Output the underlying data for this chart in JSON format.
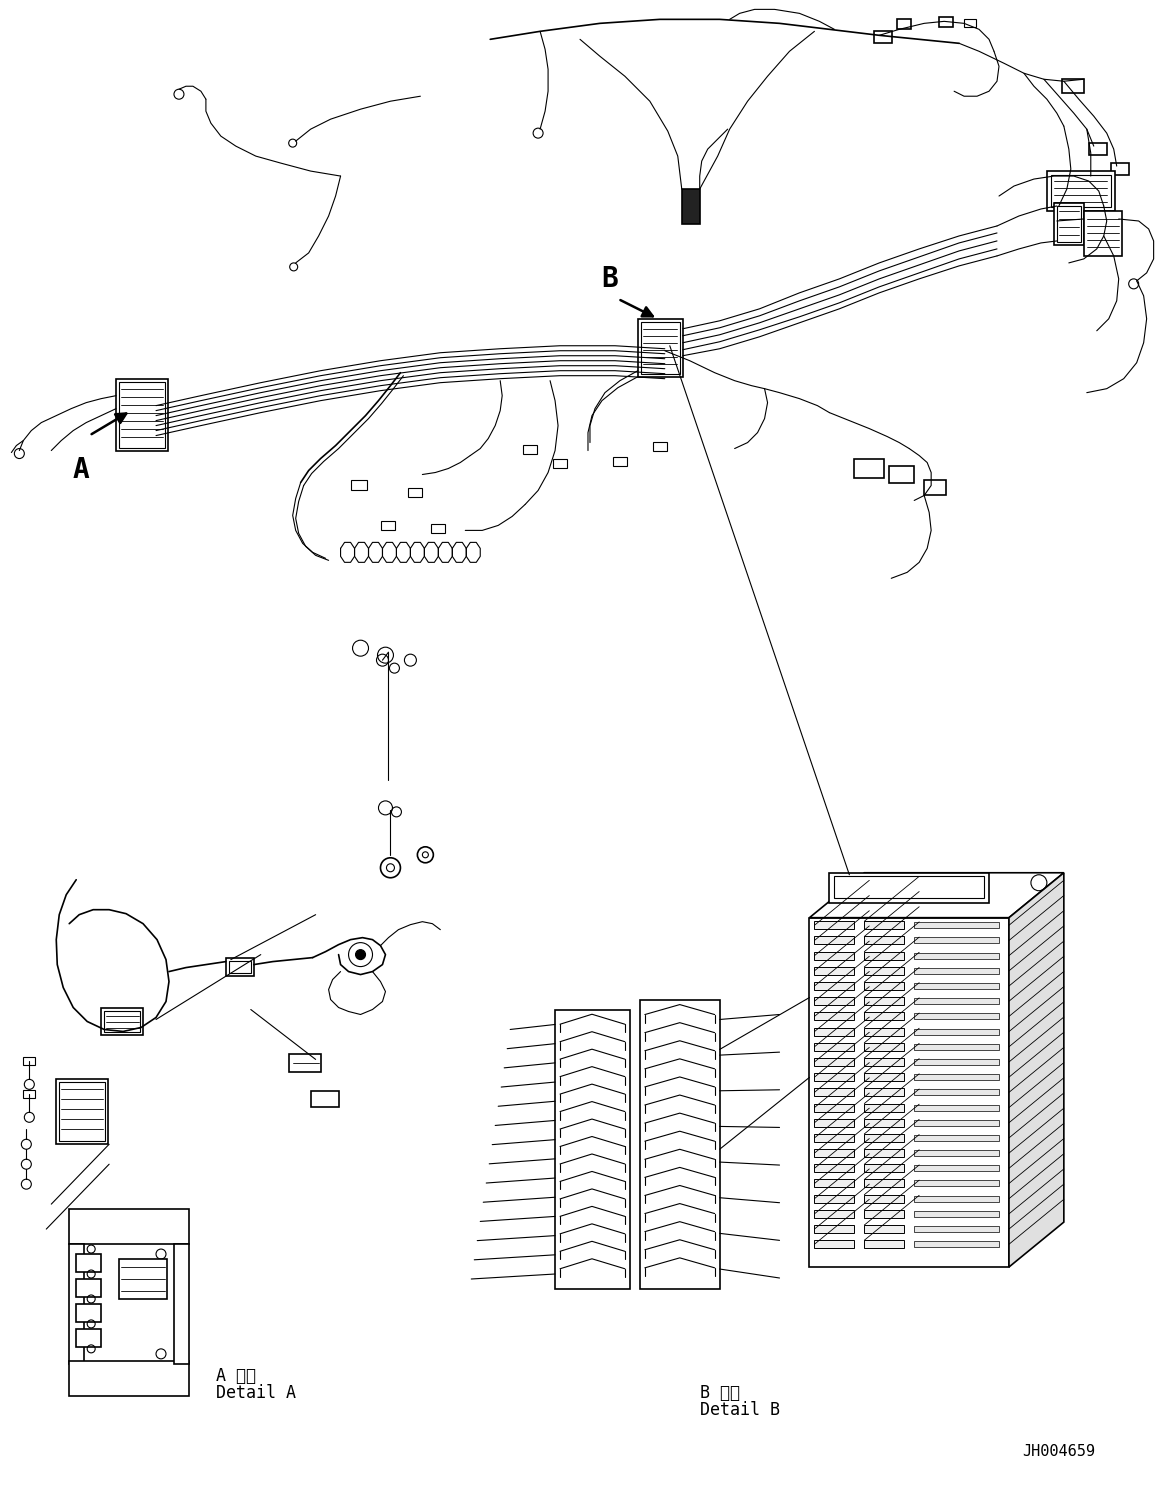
{
  "background_color": "#ffffff",
  "line_color": "#000000",
  "fig_width": 11.63,
  "fig_height": 14.88,
  "dpi": 100,
  "label_A": "A",
  "label_B": "B",
  "detail_A_text1": "A 詳細",
  "detail_A_text2": "Detail A",
  "detail_B_text1": "B 詳細",
  "detail_B_text2": "Detail B",
  "part_number": "JH004659",
  "font_family": "monospace"
}
